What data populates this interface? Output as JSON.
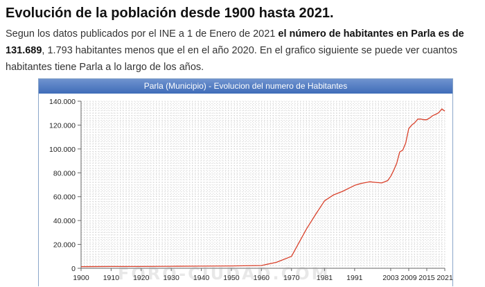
{
  "page": {
    "heading": "Evolución de la población desde 1900 hasta 2021.",
    "intro_part1": "Segun los datos publicados por el INE a 1 de Enero de 2021 ",
    "intro_bold": "el número de habitantes en Parla es de 131.689",
    "intro_part2": ", 1.793 habitantes menos que el en el año 2020. En el grafico siguiente se puede ver cuantos habitantes tiene Parla a lo largo de los años.",
    "watermark": "FORO-CIUDAD.COM"
  },
  "chart_data": {
    "type": "line",
    "title": "Parla (Municipio) - Evolucion del numero de Habitantes",
    "xlabel": "",
    "ylabel": "",
    "x_ticks": [
      "1900",
      "1910",
      "1920",
      "1930",
      "1940",
      "1950",
      "1960",
      "1970",
      "1981",
      "1991",
      "2003",
      "2009",
      "2015",
      "2021"
    ],
    "x_tick_years": [
      1900,
      1910,
      1920,
      1930,
      1940,
      1950,
      1960,
      1970,
      1981,
      1991,
      2003,
      2009,
      2015,
      2021
    ],
    "y_ticks": [
      "0",
      "20.000",
      "40.000",
      "60.000",
      "80.000",
      "100.000",
      "120.000",
      "140.000"
    ],
    "ylim": [
      0,
      140000
    ],
    "grid": true,
    "line_color": "#d9402a",
    "series": [
      {
        "name": "Habitantes",
        "x": [
          1900,
          1910,
          1920,
          1930,
          1940,
          1950,
          1960,
          1965,
          1970,
          1975,
          1978,
          1981,
          1984,
          1987,
          1991,
          1993,
          1996,
          1998,
          2000,
          2002,
          2003,
          2004,
          2005,
          2006,
          2007,
          2008,
          2009,
          2010,
          2011,
          2012,
          2013,
          2014,
          2015,
          2016,
          2017,
          2018,
          2019,
          2020,
          2021
        ],
        "values": [
          1400,
          1500,
          1500,
          1700,
          1800,
          2000,
          2300,
          5000,
          10000,
          33000,
          45000,
          56500,
          61500,
          64500,
          69500,
          71000,
          72500,
          72000,
          71500,
          73500,
          77000,
          82000,
          88000,
          97500,
          99000,
          105000,
          117000,
          120000,
          122000,
          125000,
          125000,
          124500,
          124500,
          126000,
          128000,
          129000,
          130500,
          133482,
          131689
        ]
      }
    ]
  }
}
